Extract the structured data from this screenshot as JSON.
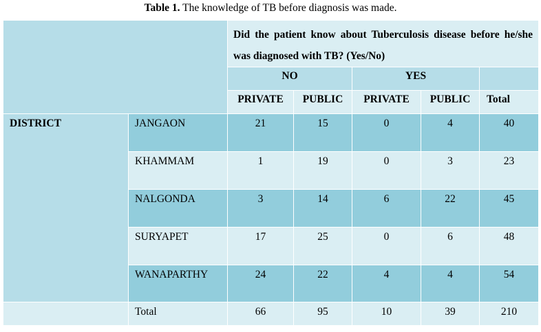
{
  "caption": {
    "label": "Table 1.",
    "text": " The knowledge of TB before diagnosis was made."
  },
  "header": {
    "question": "Did the patient know about Tuberculosis disease before he/she was diagnosed with TB? (Yes/No)",
    "no": "NO",
    "yes": "YES",
    "sub": [
      "PRIVATE",
      "PUBLIC",
      "PRIVATE",
      "PUBLIC",
      "Total"
    ]
  },
  "district_label": "DISTRICT",
  "rows": [
    {
      "name": "JANGAON",
      "values": [
        "21",
        "15",
        "0",
        "4",
        "40"
      ]
    },
    {
      "name": "KHAMMAM",
      "values": [
        "1",
        "19",
        "0",
        "3",
        "23"
      ]
    },
    {
      "name": "NALGONDA",
      "values": [
        "3",
        "14",
        "6",
        "22",
        "45"
      ]
    },
    {
      "name": "SURYAPET",
      "values": [
        "17",
        "25",
        "0",
        "6",
        "48"
      ]
    },
    {
      "name": "WANAPARTHY",
      "values": [
        "24",
        "22",
        "4",
        "4",
        "54"
      ]
    }
  ],
  "total": {
    "name": "Total",
    "values": [
      "66",
      "95",
      "10",
      "39",
      "210"
    ]
  },
  "colors": {
    "light": "#daeef3",
    "mid": "#b6dde8",
    "dark": "#92cddc"
  }
}
